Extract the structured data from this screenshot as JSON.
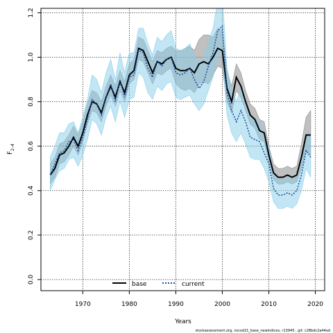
{
  "chart_data": {
    "type": "line",
    "xlabel": "Years",
    "ylabel_main": "F",
    "ylabel_sub": "2–4",
    "xlim": [
      1961,
      2022
    ],
    "ylim": [
      -0.05,
      1.22
    ],
    "xticks": [
      1970,
      1980,
      1990,
      2000,
      2010,
      2020
    ],
    "yticks": [
      0.0,
      0.2,
      0.4,
      0.6,
      0.8,
      1.0,
      1.2
    ],
    "xtick_labels": [
      "1970",
      "1980",
      "1990",
      "2000",
      "2010",
      "2020"
    ],
    "ytick_labels": [
      "0.0",
      "0.2",
      "0.4",
      "0.6",
      "0.8",
      "1.0",
      "1.2"
    ],
    "grid": true,
    "legend_position": "bottom-center",
    "x": [
      1963,
      1964,
      1965,
      1966,
      1967,
      1968,
      1969,
      1970,
      1971,
      1972,
      1973,
      1974,
      1975,
      1976,
      1977,
      1978,
      1979,
      1980,
      1981,
      1982,
      1983,
      1984,
      1985,
      1986,
      1987,
      1988,
      1989,
      1990,
      1991,
      1992,
      1993,
      1994,
      1995,
      1996,
      1997,
      1998,
      1999,
      2000,
      2001,
      2002,
      2003,
      2004,
      2005,
      2006,
      2007,
      2008,
      2009,
      2010,
      2011,
      2012,
      2013,
      2014,
      2015,
      2016,
      2017,
      2018,
      2019
    ],
    "series": [
      {
        "name": "base",
        "color": "#000000",
        "band_color": "#8c8c8c",
        "line_style": "solid",
        "values": [
          0.47,
          0.5,
          0.56,
          0.57,
          0.6,
          0.64,
          0.6,
          0.66,
          0.74,
          0.8,
          0.79,
          0.75,
          0.82,
          0.87,
          0.82,
          0.89,
          0.84,
          0.92,
          0.94,
          1.04,
          1.03,
          0.98,
          0.93,
          0.98,
          0.97,
          0.99,
          1.0,
          0.95,
          0.94,
          0.94,
          0.95,
          0.93,
          0.97,
          0.98,
          0.97,
          1.0,
          1.04,
          1.03,
          0.86,
          0.8,
          0.91,
          0.87,
          0.8,
          0.74,
          0.72,
          0.67,
          0.66,
          0.56,
          0.48,
          0.46,
          0.46,
          0.47,
          0.46,
          0.47,
          0.55,
          0.65,
          0.65
        ],
        "lower": [
          0.43,
          0.46,
          0.52,
          0.53,
          0.56,
          0.6,
          0.56,
          0.62,
          0.7,
          0.76,
          0.75,
          0.71,
          0.78,
          0.83,
          0.78,
          0.85,
          0.8,
          0.88,
          0.9,
          0.99,
          0.98,
          0.93,
          0.88,
          0.93,
          0.92,
          0.94,
          0.95,
          0.88,
          0.86,
          0.85,
          0.86,
          0.84,
          0.88,
          0.89,
          0.88,
          0.92,
          0.96,
          0.95,
          0.8,
          0.75,
          0.85,
          0.82,
          0.76,
          0.7,
          0.68,
          0.63,
          0.62,
          0.53,
          0.45,
          0.43,
          0.43,
          0.44,
          0.43,
          0.44,
          0.5,
          0.58,
          0.56
        ],
        "upper": [
          0.52,
          0.55,
          0.61,
          0.62,
          0.65,
          0.69,
          0.65,
          0.71,
          0.79,
          0.85,
          0.84,
          0.8,
          0.87,
          0.92,
          0.87,
          0.94,
          0.89,
          0.97,
          0.99,
          1.09,
          1.08,
          1.03,
          0.98,
          1.03,
          1.02,
          1.04,
          1.05,
          1.03,
          1.03,
          1.04,
          1.05,
          1.03,
          1.08,
          1.1,
          1.1,
          1.09,
          1.13,
          1.12,
          0.94,
          0.87,
          0.97,
          0.93,
          0.85,
          0.79,
          0.77,
          0.72,
          0.71,
          0.6,
          0.52,
          0.5,
          0.5,
          0.51,
          0.5,
          0.51,
          0.61,
          0.73,
          0.76
        ]
      },
      {
        "name": "current",
        "color": "#1f4e9b",
        "band_color": "#87ceeb",
        "line_style": "dotted",
        "values": [
          0.47,
          0.52,
          0.57,
          0.58,
          0.62,
          0.63,
          0.58,
          0.64,
          0.72,
          0.81,
          0.79,
          0.74,
          0.82,
          0.88,
          0.8,
          0.9,
          0.82,
          0.91,
          0.92,
          1.03,
          1.02,
          0.95,
          0.91,
          0.98,
          0.96,
          0.99,
          1.0,
          0.93,
          0.92,
          0.93,
          0.95,
          0.9,
          0.86,
          0.89,
          0.96,
          1.02,
          1.12,
          1.14,
          0.84,
          0.76,
          0.71,
          0.76,
          0.71,
          0.64,
          0.63,
          0.62,
          0.57,
          0.52,
          0.41,
          0.38,
          0.38,
          0.39,
          0.38,
          0.4,
          0.47,
          0.58,
          0.55
        ],
        "lower": [
          0.4,
          0.45,
          0.49,
          0.5,
          0.54,
          0.55,
          0.51,
          0.56,
          0.63,
          0.72,
          0.7,
          0.65,
          0.73,
          0.78,
          0.71,
          0.8,
          0.73,
          0.81,
          0.82,
          0.93,
          0.91,
          0.84,
          0.81,
          0.87,
          0.85,
          0.88,
          0.89,
          0.82,
          0.81,
          0.82,
          0.83,
          0.79,
          0.76,
          0.79,
          0.85,
          0.91,
          1.0,
          1.01,
          0.74,
          0.66,
          0.62,
          0.66,
          0.61,
          0.55,
          0.54,
          0.54,
          0.5,
          0.44,
          0.35,
          0.32,
          0.32,
          0.33,
          0.32,
          0.34,
          0.4,
          0.5,
          0.46
        ],
        "upper": [
          0.55,
          0.6,
          0.66,
          0.66,
          0.7,
          0.71,
          0.66,
          0.73,
          0.81,
          0.92,
          0.9,
          0.84,
          0.93,
          0.99,
          0.9,
          1.02,
          0.93,
          1.02,
          1.02,
          1.13,
          1.13,
          1.06,
          1.01,
          1.09,
          1.07,
          1.1,
          1.12,
          1.04,
          1.03,
          1.04,
          1.06,
          1.01,
          0.97,
          1.0,
          1.07,
          1.13,
          1.25,
          1.28,
          0.95,
          0.86,
          0.8,
          0.86,
          0.81,
          0.73,
          0.72,
          0.71,
          0.65,
          0.6,
          0.48,
          0.45,
          0.45,
          0.46,
          0.45,
          0.47,
          0.55,
          0.66,
          0.64
        ]
      }
    ]
  },
  "footer": "stockassessment.org,  nscod21_base_newindices,  r13945 ,  git: c28bdc2a44ad"
}
